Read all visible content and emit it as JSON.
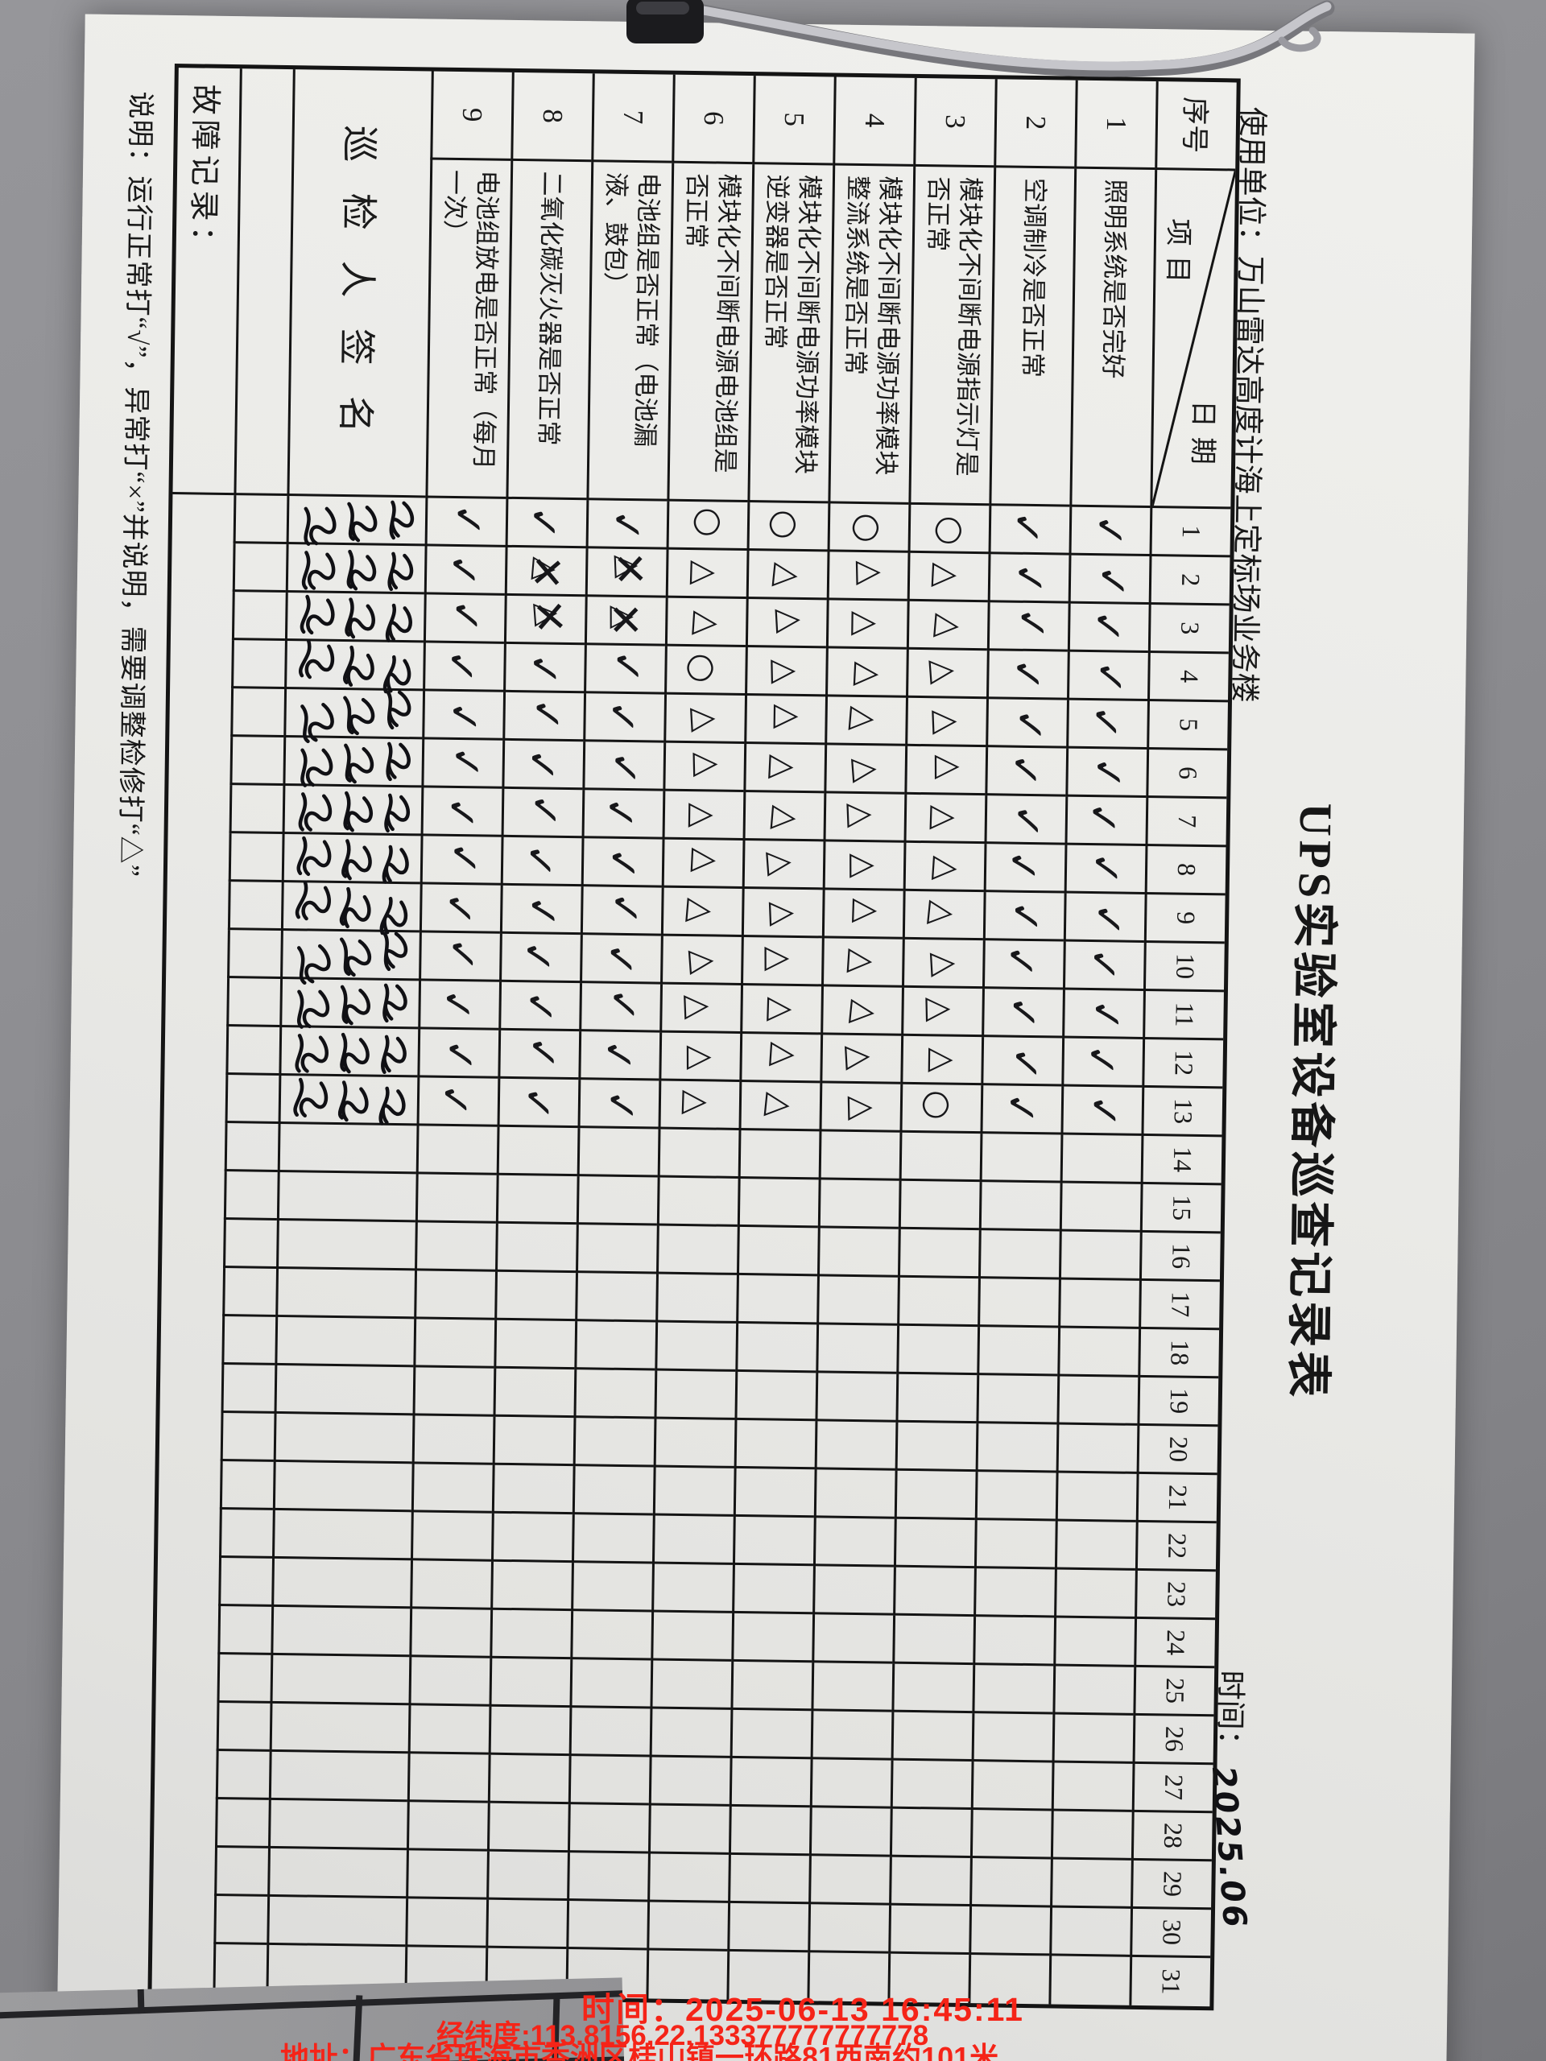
{
  "form": {
    "title": "UPS实验室设备巡查记录表",
    "unit_label": "使用单位：",
    "unit_value": "万山雷达高度计海上定标场业务楼",
    "period_label": "时间：",
    "period_value": "2025.06",
    "header": {
      "seq": "序号",
      "item": "项目",
      "date": "日期"
    },
    "days": 31,
    "rows": [
      {
        "no": "1",
        "item": "照明系统是否完好",
        "marks": [
          "v",
          "v",
          "v",
          "v",
          "v",
          "v",
          "v",
          "v",
          "v",
          "v",
          "v",
          "v",
          "v"
        ]
      },
      {
        "no": "2",
        "item": "空调制冷是否正常",
        "marks": [
          "v",
          "v",
          "v",
          "v",
          "v",
          "v",
          "v",
          "v",
          "v",
          "v",
          "v",
          "v",
          "v"
        ]
      },
      {
        "no": "3",
        "item": "模块化不间断电源指示灯是否正常",
        "marks": [
          "o",
          "t",
          "t",
          "t",
          "t",
          "t",
          "t",
          "t",
          "t",
          "t",
          "t",
          "t",
          "o"
        ]
      },
      {
        "no": "4",
        "item": "模块化不间断电源功率模块整流系统是否正常",
        "marks": [
          "o",
          "t",
          "t",
          "t",
          "t",
          "t",
          "t",
          "t",
          "t",
          "t",
          "t",
          "t",
          "t"
        ]
      },
      {
        "no": "5",
        "item": "模块化不间断电源功率模块逆变器是否正常",
        "marks": [
          "o",
          "t",
          "t",
          "t",
          "t",
          "t",
          "t",
          "t",
          "t",
          "t",
          "t",
          "t",
          "t"
        ]
      },
      {
        "no": "6",
        "item": "模块化不间断电源电池组是否正常",
        "marks": [
          "o",
          "t",
          "t",
          "o",
          "t",
          "t",
          "t",
          "t",
          "t",
          "t",
          "t",
          "t",
          "t"
        ]
      },
      {
        "no": "7",
        "item": "电池组是否正常（电池漏液、鼓包）",
        "marks": [
          "v",
          "x",
          "x",
          "v",
          "v",
          "v",
          "v",
          "v",
          "v",
          "v",
          "v",
          "v",
          "v"
        ]
      },
      {
        "no": "8",
        "item": "二氧化碳灭火器是否正常",
        "marks": [
          "v",
          "x",
          "x",
          "v",
          "v",
          "v",
          "v",
          "v",
          "v",
          "v",
          "v",
          "v",
          "v"
        ]
      },
      {
        "no": "9",
        "item": "电池组放电是否正常（每月一次）",
        "marks": [
          "v",
          "v",
          "v",
          "v",
          "v",
          "v",
          "v",
          "v",
          "v",
          "v",
          "v",
          "v",
          "v"
        ]
      }
    ],
    "mark_glyphs": {
      "v": "✓",
      "t": "△",
      "o": "○",
      "x": "△✕"
    },
    "signature_row_label": "巡检人签名",
    "signature_days": 13,
    "fault_row_label": "故障记录：",
    "note": "说明：运行正常打“√”，异常打“×”并说明，需要调整检修打“△”",
    "ink_color": "#17171a",
    "line_color": "#141414"
  },
  "watermark": {
    "color": "#f52418",
    "time_line": "时间：2025-06-13 16:45:11",
    "geo_line": "经纬度:113.8156,22.133377777777778",
    "addr_line": "地址：广东省珠海市香洲区桂山镇一环路81西南约101米"
  }
}
